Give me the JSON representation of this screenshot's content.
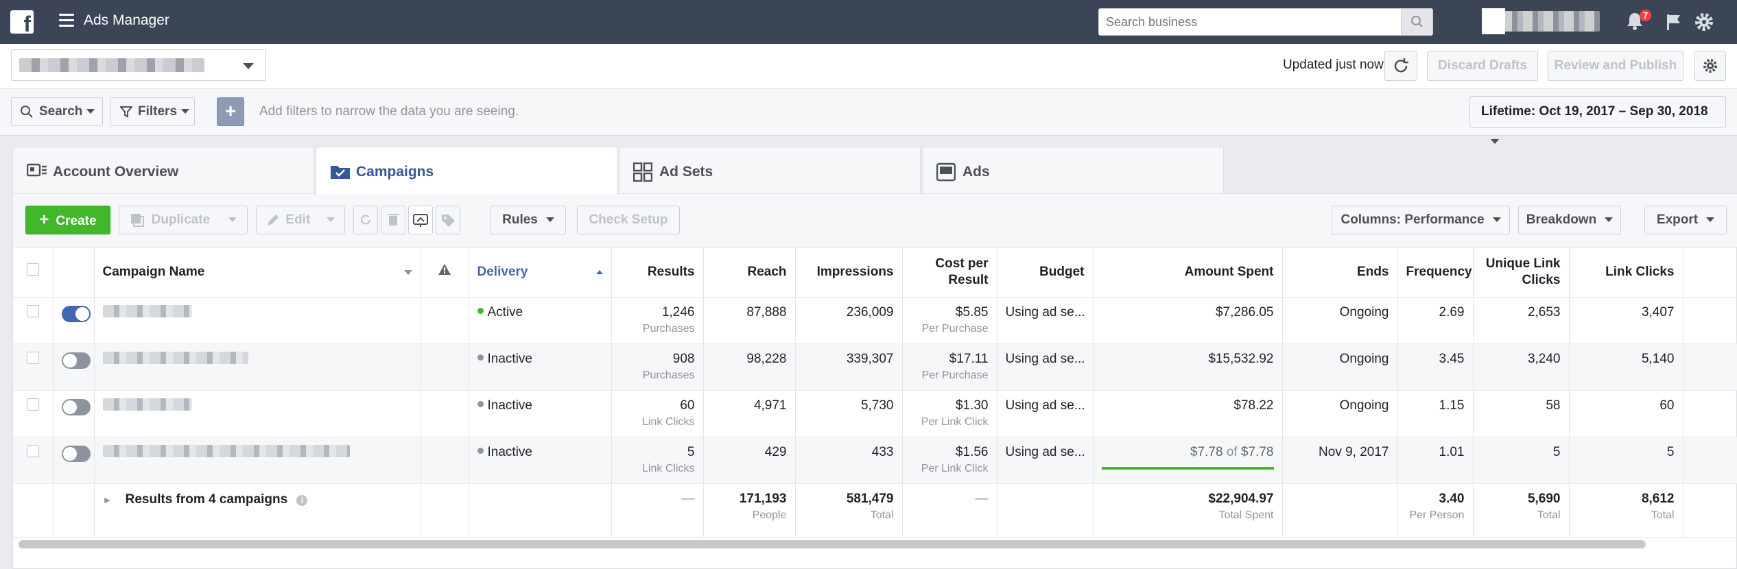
{
  "app": {
    "title": "Ads Manager"
  },
  "topbar": {
    "search_placeholder": "Search business",
    "notification_count": "7"
  },
  "account_row": {
    "updated_label": "Updated just now",
    "discard_label": "Discard Drafts",
    "review_label": "Review and Publish"
  },
  "filter_row": {
    "search_label": "Search",
    "filters_label": "Filters",
    "add_label": "+",
    "hint": "Add filters to narrow the data you are seeing.",
    "date_range": "Lifetime: Oct 19, 2017 – Sep 30, 2018"
  },
  "tabs": [
    {
      "label": "Account Overview",
      "icon": "account-overview-icon"
    },
    {
      "label": "Campaigns",
      "icon": "folder-check-icon"
    },
    {
      "label": "Ad Sets",
      "icon": "grid-icon"
    },
    {
      "label": "Ads",
      "icon": "ad-icon"
    }
  ],
  "toolbar": {
    "create_label": "Create",
    "duplicate_label": "Duplicate",
    "edit_label": "Edit",
    "rules_label": "Rules",
    "check_setup_label": "Check Setup",
    "columns_label": "Columns: Performance",
    "breakdown_label": "Breakdown",
    "export_label": "Export"
  },
  "table": {
    "headers": {
      "name": "Campaign Name",
      "delivery": "Delivery",
      "results": "Results",
      "reach": "Reach",
      "impressions": "Impressions",
      "cost": "Cost per Result",
      "budget": "Budget",
      "spent": "Amount Spent",
      "ends": "Ends",
      "frequency": "Frequency",
      "unique_clicks": "Unique Link Clicks",
      "link_clicks": "Link Clicks"
    },
    "rows": [
      {
        "on": true,
        "delivery": "Active",
        "results": "1,246",
        "results_sub": "Purchases",
        "reach": "87,888",
        "impressions": "236,009",
        "cost": "$5.85",
        "cost_sub": "Per Purchase",
        "budget": "Using ad se...",
        "spent": "$7,286.05",
        "ends": "Ongoing",
        "frequency": "2.69",
        "unique_clicks": "2,653",
        "link_clicks": "3,407"
      },
      {
        "on": false,
        "delivery": "Inactive",
        "results": "908",
        "results_sub": "Purchases",
        "reach": "98,228",
        "impressions": "339,307",
        "cost": "$17.11",
        "cost_sub": "Per Purchase",
        "budget": "Using ad se...",
        "spent": "$15,532.92",
        "ends": "Ongoing",
        "frequency": "3.45",
        "unique_clicks": "3,240",
        "link_clicks": "5,140"
      },
      {
        "on": false,
        "delivery": "Inactive",
        "results": "60",
        "results_sub": "Link Clicks",
        "reach": "4,971",
        "impressions": "5,730",
        "cost": "$1.30",
        "cost_sub": "Per Link Click",
        "budget": "Using ad se...",
        "spent": "$78.22",
        "ends": "Ongoing",
        "frequency": "1.15",
        "unique_clicks": "58",
        "link_clicks": "60"
      },
      {
        "on": false,
        "delivery": "Inactive",
        "results": "5",
        "results_sub": "Link Clicks",
        "reach": "429",
        "impressions": "433",
        "cost": "$1.56",
        "cost_sub": "Per Link Click",
        "budget": "Using ad se...",
        "spent": "$7.78",
        "spent_of": "of",
        "spent_total": "$7.78",
        "spent_progress": 1.0,
        "ends": "Nov 9, 2017",
        "frequency": "1.01",
        "unique_clicks": "5",
        "link_clicks": "5"
      }
    ],
    "summary": {
      "label": "Results from 4 campaigns",
      "results": "—",
      "reach": "171,193",
      "reach_sub": "People",
      "impressions": "581,479",
      "impressions_sub": "Total",
      "cost": "—",
      "spent": "$22,904.97",
      "spent_sub": "Total Spent",
      "frequency": "3.40",
      "frequency_sub": "Per Person",
      "unique_clicks": "5,690",
      "unique_clicks_sub": "Total",
      "link_clicks": "8,612",
      "link_clicks_sub": "Total"
    }
  },
  "colors": {
    "accent": "#4267b2",
    "create_green": "#42b72a",
    "topbar": "#3b4555"
  }
}
